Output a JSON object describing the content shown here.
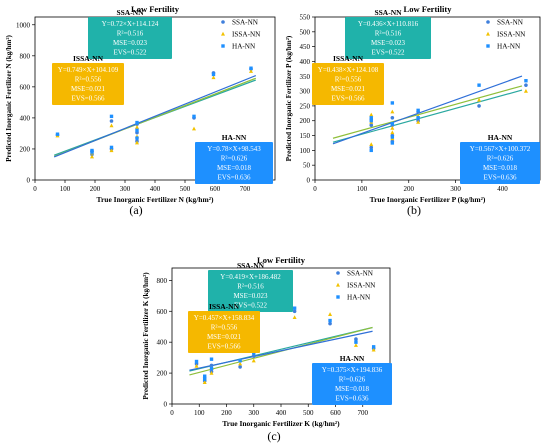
{
  "figure": {
    "panel_labels": [
      "(a)",
      "(b)",
      "(c)"
    ]
  },
  "colors": {
    "ssa": "#3f7fdc",
    "issa": "#f2c200",
    "ha": "#1e90ff",
    "ssa_line": "#2aa8a0",
    "issa_line": "#8fbf3a",
    "ha_line": "#2f6fd8",
    "ssa_box": "#20b2aa",
    "issa_box": "#f5b800",
    "ha_box": "#1e90ff"
  },
  "chart_data": [
    {
      "type": "scatter",
      "title": "Low Fertility",
      "xlabel": "True Inorganic Fertilizer N (kg/hm²)",
      "ylabel": "Predicted Inorganic Fertilizer N (kg/hm²)",
      "xlim": [
        0,
        800
      ],
      "ylim": [
        0,
        1050
      ],
      "xticks": [
        "0",
        "100",
        "200",
        "300",
        "400",
        "500",
        "600",
        "700"
      ],
      "yticks": [
        "0",
        "200",
        "400",
        "600",
        "800",
        "1000"
      ],
      "legend": [
        "SSA-NN",
        "ISSA-NN",
        "HA-NN"
      ],
      "legend_position": "top-right",
      "series": [
        {
          "name": "SSA-NN",
          "marker": "circle",
          "points": [
            [
              75,
              290
            ],
            [
              190,
              185
            ],
            [
              190,
              165
            ],
            [
              255,
              200
            ],
            [
              255,
              380
            ],
            [
              340,
              360
            ],
            [
              340,
              305
            ],
            [
              340,
              250
            ],
            [
              530,
              400
            ],
            [
              595,
              690
            ],
            [
              720,
              715
            ]
          ],
          "fit": {
            "slope": 0.72,
            "intercept": 114.124
          }
        },
        {
          "name": "ISSA-NN",
          "marker": "triangle",
          "points": [
            [
              75,
              285
            ],
            [
              190,
              150
            ],
            [
              190,
              175
            ],
            [
              255,
              190
            ],
            [
              255,
              350
            ],
            [
              340,
              340
            ],
            [
              340,
              280
            ],
            [
              340,
              240
            ],
            [
              530,
              330
            ],
            [
              595,
              660
            ],
            [
              720,
              700
            ]
          ],
          "fit": {
            "slope": 0.749,
            "intercept": 104.109
          }
        },
        {
          "name": "HA-NN",
          "marker": "square",
          "points": [
            [
              75,
              295
            ],
            [
              190,
              180
            ],
            [
              190,
              190
            ],
            [
              255,
              210
            ],
            [
              255,
              410
            ],
            [
              340,
              370
            ],
            [
              340,
              320
            ],
            [
              340,
              270
            ],
            [
              530,
              410
            ],
            [
              595,
              680
            ],
            [
              720,
              720
            ]
          ],
          "fit": {
            "slope": 0.78,
            "intercept": 98.543
          }
        }
      ],
      "boxes": [
        {
          "name": "SSA-NN",
          "lines": [
            "Y=0.72×X+114.124",
            "R²=0.516",
            "MSE=0.023",
            "EVS=0.522"
          ]
        },
        {
          "name": "ISSA-NN",
          "lines": [
            "Y=0.749×X+104.109",
            "R²=0.556",
            "MSE=0.021",
            "EVS=0.566"
          ]
        },
        {
          "name": "HA-NN",
          "lines": [
            "Y=0.78×X+98.543",
            "R²=0.626",
            "MSE=0.018",
            "EVS=0.636"
          ]
        }
      ]
    },
    {
      "type": "scatter",
      "title": "Low Fertility",
      "xlabel": "True Inorganic Fertilizer P (kg/hm²)",
      "ylabel": "Predicted Inorganic Fertilizer P (kg/hm²)",
      "xlim": [
        0,
        480
      ],
      "ylim": [
        0,
        550
      ],
      "xticks": [
        "0",
        "100",
        "200",
        "300",
        "400"
      ],
      "yticks": [
        "0",
        "50",
        "100",
        "150",
        "200",
        "250",
        "300",
        "350",
        "400",
        "450",
        "500",
        "550"
      ],
      "legend": [
        "SSA-NN",
        "ISSA-NN",
        "HA-NN"
      ],
      "legend_position": "top-right",
      "series": [
        {
          "name": "SSA-NN",
          "marker": "circle",
          "points": [
            [
              120,
              205
            ],
            [
              120,
              110
            ],
            [
              120,
              185
            ],
            [
              165,
              210
            ],
            [
              165,
              185
            ],
            [
              165,
              150
            ],
            [
              165,
              130
            ],
            [
              220,
              230
            ],
            [
              220,
              200
            ],
            [
              350,
              250
            ],
            [
              450,
              320
            ]
          ],
          "fit": {
            "slope": 0.436,
            "intercept": 110.816
          }
        },
        {
          "name": "ISSA-NN",
          "marker": "triangle",
          "points": [
            [
              120,
              220
            ],
            [
              120,
              120
            ],
            [
              120,
              195
            ],
            [
              165,
              230
            ],
            [
              165,
              175
            ],
            [
              165,
              160
            ],
            [
              165,
              140
            ],
            [
              220,
              215
            ],
            [
              220,
              195
            ],
            [
              350,
              270
            ],
            [
              450,
              300
            ]
          ],
          "fit": {
            "slope": 0.438,
            "intercept": 124.108
          }
        },
        {
          "name": "HA-NN",
          "marker": "square",
          "points": [
            [
              120,
              200
            ],
            [
              120,
              100
            ],
            [
              120,
              210
            ],
            [
              165,
              260
            ],
            [
              165,
              190
            ],
            [
              165,
              145
            ],
            [
              165,
              125
            ],
            [
              220,
              235
            ],
            [
              220,
              210
            ],
            [
              350,
              320
            ],
            [
              450,
              335
            ]
          ],
          "fit": {
            "slope": 0.567,
            "intercept": 100.372
          }
        }
      ],
      "boxes": [
        {
          "name": "SSA-NN",
          "lines": [
            "Y=0.436×X+110.816",
            "R²=0.516",
            "MSE=0.023",
            "EVS=0.522"
          ]
        },
        {
          "name": "ISSA-NN",
          "lines": [
            "Y=0.438×X+124.108",
            "R²=0.556",
            "MSE=0.021",
            "EVS=0.566"
          ]
        },
        {
          "name": "HA-NN",
          "lines": [
            "Y=0.567×X+100.372",
            "R²=0.626",
            "MSE=0.018",
            "EVS=0.636"
          ]
        }
      ]
    },
    {
      "type": "scatter",
      "title": "Low Fertility",
      "xlabel": "True Inorganic Fertilizer K (kg/hm²)",
      "ylabel": "Predicted Inorganic Fertilizer K (kg/hm²)",
      "xlim": [
        0,
        800
      ],
      "ylim": [
        0,
        880
      ],
      "xticks": [
        "0",
        "100",
        "200",
        "300",
        "400",
        "500",
        "600",
        "700"
      ],
      "yticks": [
        "0",
        "200",
        "400",
        "600",
        "800"
      ],
      "legend": [
        "SSA-NN",
        "ISSA-NN",
        "HA-NN"
      ],
      "legend_position": "top-right",
      "series": [
        {
          "name": "SSA-NN",
          "marker": "circle",
          "points": [
            [
              90,
              260
            ],
            [
              120,
              150
            ],
            [
              120,
              170
            ],
            [
              145,
              210
            ],
            [
              145,
              250
            ],
            [
              250,
              240
            ],
            [
              300,
              310
            ],
            [
              450,
              600
            ],
            [
              580,
              520
            ],
            [
              675,
              420
            ],
            [
              740,
              360
            ]
          ],
          "fit": {
            "slope": 0.419,
            "intercept": 186.482
          }
        },
        {
          "name": "ISSA-NN",
          "marker": "triangle",
          "points": [
            [
              90,
              245
            ],
            [
              120,
              140
            ],
            [
              120,
              165
            ],
            [
              145,
              200
            ],
            [
              145,
              230
            ],
            [
              250,
              260
            ],
            [
              300,
              280
            ],
            [
              450,
              560
            ],
            [
              580,
              580
            ],
            [
              675,
              380
            ],
            [
              740,
              350
            ]
          ],
          "fit": {
            "slope": 0.457,
            "intercept": 158.834
          }
        },
        {
          "name": "HA-NN",
          "marker": "square",
          "points": [
            [
              90,
              275
            ],
            [
              120,
              160
            ],
            [
              120,
              180
            ],
            [
              145,
              230
            ],
            [
              145,
              290
            ],
            [
              250,
              280
            ],
            [
              300,
              330
            ],
            [
              450,
              620
            ],
            [
              580,
              540
            ],
            [
              675,
              400
            ],
            [
              740,
              370
            ]
          ],
          "fit": {
            "slope": 0.375,
            "intercept": 194.836
          }
        }
      ],
      "boxes": [
        {
          "name": "SSA-NN",
          "lines": [
            "Y=0.419×X+186.482",
            "R²=0.516",
            "MSE=0.023",
            "EVS=0.522"
          ]
        },
        {
          "name": "ISSA-NN",
          "lines": [
            "Y=0.457×X+158.834",
            "R²=0.556",
            "MSE=0.021",
            "EVS=0.566"
          ]
        },
        {
          "name": "HA-NN",
          "lines": [
            "Y=0.375×X+194.836",
            "R²=0.626",
            "MSE=0.018",
            "EVS=0.636"
          ]
        }
      ]
    }
  ]
}
